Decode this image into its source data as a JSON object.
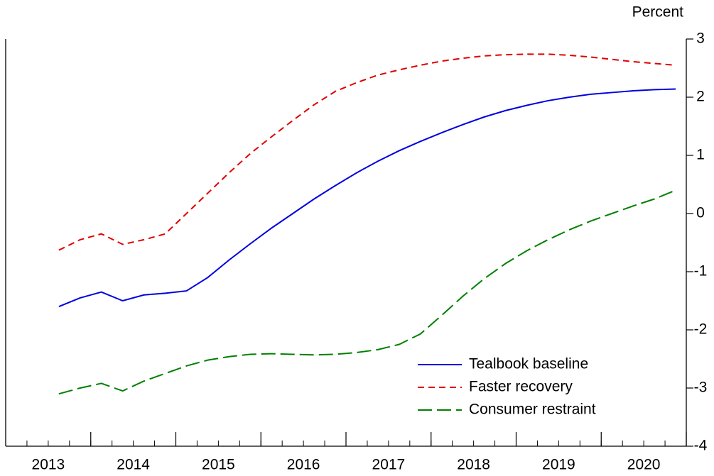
{
  "chart_data": {
    "type": "line",
    "y_axis_label": "Percent",
    "x": [
      2013.625,
      2013.875,
      2014.125,
      2014.375,
      2014.625,
      2014.875,
      2015.125,
      2015.375,
      2015.625,
      2015.875,
      2016.125,
      2016.375,
      2016.625,
      2016.875,
      2017.125,
      2017.375,
      2017.625,
      2017.875,
      2018.125,
      2018.375,
      2018.625,
      2018.875,
      2019.125,
      2019.375,
      2019.625,
      2019.875,
      2020.125,
      2020.375,
      2020.625,
      2020.875
    ],
    "series": [
      {
        "name": "Tealbook baseline",
        "color": "#0000e0",
        "dash": "solid",
        "values": [
          -1.6,
          -1.45,
          -1.35,
          -1.5,
          -1.4,
          -1.37,
          -1.33,
          -1.1,
          -0.8,
          -0.52,
          -0.25,
          0.0,
          0.25,
          0.48,
          0.7,
          0.9,
          1.08,
          1.24,
          1.39,
          1.53,
          1.66,
          1.77,
          1.86,
          1.94,
          2.0,
          2.05,
          2.08,
          2.11,
          2.13,
          2.14
        ]
      },
      {
        "name": "Faster recovery",
        "color": "#e00000",
        "dash": "short",
        "values": [
          -0.63,
          -0.45,
          -0.35,
          -0.53,
          -0.45,
          -0.35,
          0.0,
          0.35,
          0.7,
          1.03,
          1.32,
          1.6,
          1.87,
          2.1,
          2.25,
          2.38,
          2.47,
          2.55,
          2.62,
          2.67,
          2.71,
          2.73,
          2.74,
          2.74,
          2.72,
          2.69,
          2.65,
          2.61,
          2.58,
          2.55
        ]
      },
      {
        "name": "Consumer restraint",
        "color": "#008000",
        "dash": "long",
        "values": [
          -3.1,
          -3.0,
          -2.92,
          -3.05,
          -2.88,
          -2.75,
          -2.62,
          -2.52,
          -2.46,
          -2.42,
          -2.41,
          -2.42,
          -2.43,
          -2.42,
          -2.39,
          -2.34,
          -2.25,
          -2.07,
          -1.75,
          -1.42,
          -1.12,
          -0.86,
          -0.64,
          -0.45,
          -0.28,
          -0.13,
          0.0,
          0.13,
          0.25,
          0.4
        ]
      }
    ],
    "xlim": [
      2013,
      2021
    ],
    "xticks": [
      2014,
      2015,
      2016,
      2017,
      2018,
      2019,
      2020,
      2021
    ],
    "x_label_years": [
      2013,
      2014,
      2015,
      2016,
      2017,
      2018,
      2019,
      2020
    ],
    "ylim": [
      -4,
      3
    ],
    "yticks": [
      -4,
      -3,
      -2,
      -1,
      0,
      1,
      2,
      3
    ],
    "legend": "lower right"
  }
}
